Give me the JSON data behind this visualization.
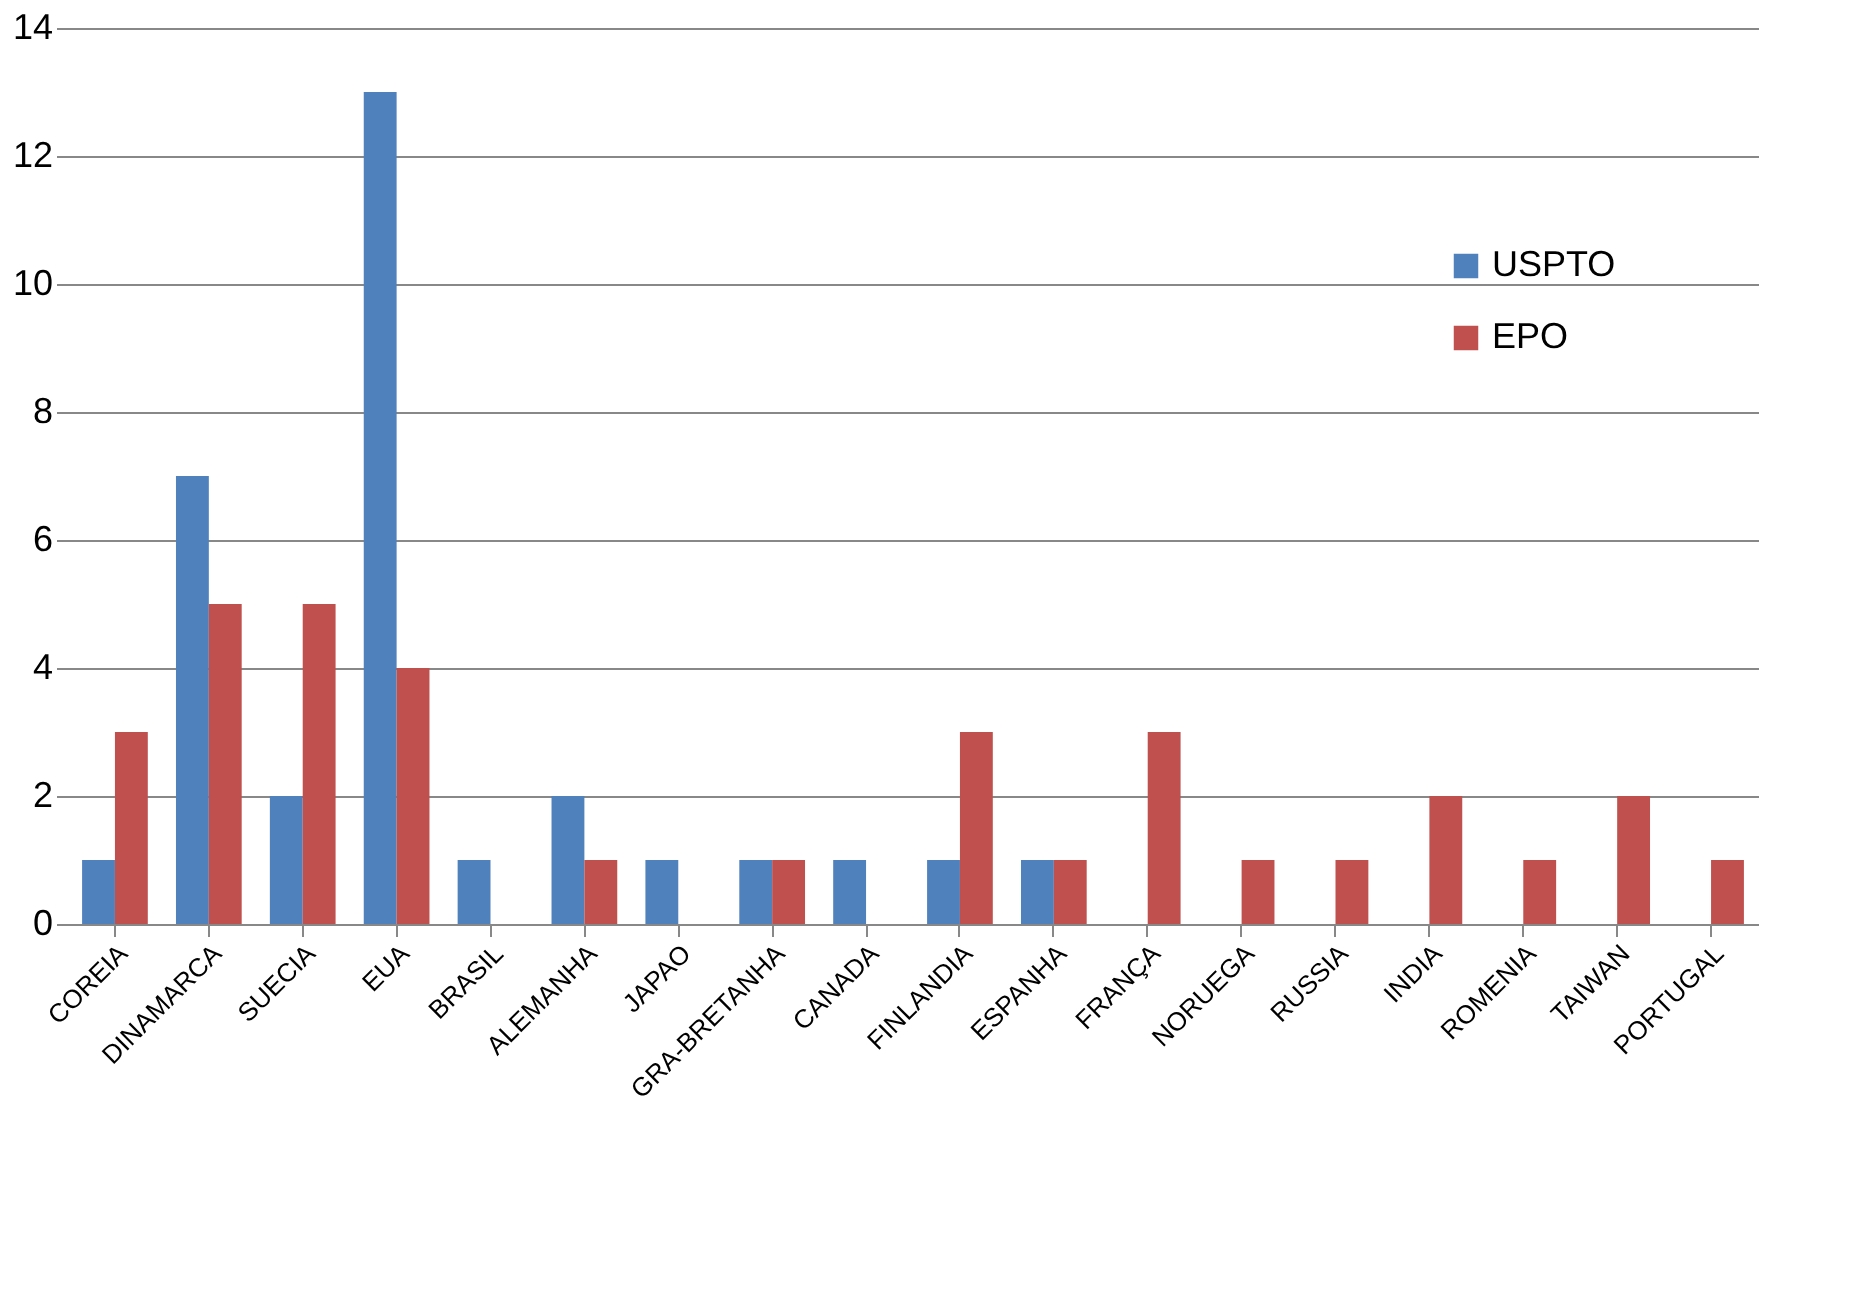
{
  "chart_data": {
    "type": "bar",
    "categories": [
      "COREIA",
      "DINAMARCA",
      "SUECIA",
      "EUA",
      "BRASIL",
      "ALEMANHA",
      "JAPAO",
      "GRA-BRETANHA",
      "CANADA",
      "FINLANDIA",
      "ESPANHA",
      "FRANÇA",
      "NORUEGA",
      "RUSSIA",
      "INDIA",
      "ROMENIA",
      "TAIWAN",
      "PORTUGAL"
    ],
    "series": [
      {
        "name": "USPTO",
        "color": "#4f81bd",
        "values": [
          1,
          7,
          2,
          13,
          1,
          2,
          1,
          1,
          1,
          1,
          1,
          0,
          0,
          0,
          0,
          0,
          0,
          0
        ]
      },
      {
        "name": "EPO",
        "color": "#c0504d",
        "values": [
          3,
          5,
          5,
          4,
          0,
          1,
          0,
          1,
          0,
          3,
          1,
          3,
          1,
          1,
          2,
          1,
          2,
          1
        ]
      }
    ],
    "ylim": [
      0,
      14
    ],
    "yticks": [
      0,
      2,
      4,
      6,
      8,
      10,
      12,
      14
    ],
    "grid": "y",
    "legend": "right"
  }
}
